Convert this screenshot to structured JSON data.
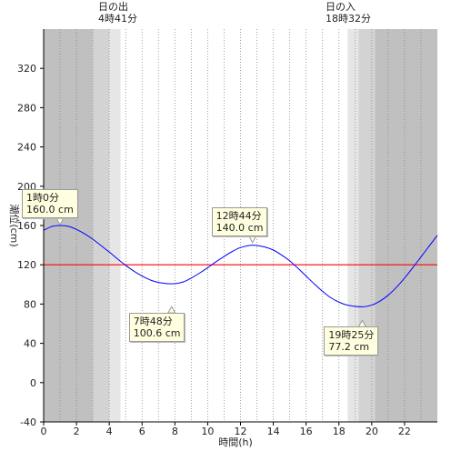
{
  "sunrise": {
    "label": "日の出",
    "time": "4時41分",
    "hour": 4.683
  },
  "sunset": {
    "label": "日の入",
    "time": "18時32分",
    "hour": 18.533
  },
  "colors": {
    "night": "#c0c0c0",
    "twilight_dark": "#d3d3d3",
    "twilight_light": "#e6e6e6",
    "day": "#ffffff",
    "curve": "#0000ff",
    "reference_line": "#ff0000"
  },
  "chart_data": {
    "type": "line",
    "xlabel": "時間(h)",
    "ylabel": "潮位(cm)",
    "xlim": [
      0,
      24
    ],
    "ylim": [
      -40,
      360
    ],
    "x_ticks": [
      0,
      2,
      4,
      6,
      8,
      10,
      12,
      14,
      16,
      18,
      20,
      22
    ],
    "y_ticks": [
      -40,
      0,
      40,
      80,
      120,
      160,
      200,
      240,
      280,
      320
    ],
    "reference_line_y": 120,
    "grid": "vertical dotted every hour",
    "bands": [
      {
        "from": 0,
        "to": 3.0,
        "shade": "night"
      },
      {
        "from": 3.0,
        "to": 4.0,
        "shade": "twilight_dark"
      },
      {
        "from": 4.0,
        "to": 4.683,
        "shade": "twilight_light"
      },
      {
        "from": 4.683,
        "to": 18.533,
        "shade": "day"
      },
      {
        "from": 18.533,
        "to": 19.2,
        "shade": "twilight_light"
      },
      {
        "from": 19.2,
        "to": 20.2,
        "shade": "twilight_dark"
      },
      {
        "from": 20.2,
        "to": 24,
        "shade": "night"
      }
    ],
    "series": [
      {
        "values": [
          [
            0.0,
            155
          ],
          [
            0.5,
            159
          ],
          [
            1.0,
            160
          ],
          [
            1.5,
            159.2
          ],
          [
            2.0,
            156
          ],
          [
            2.5,
            151.5
          ],
          [
            3.0,
            146
          ],
          [
            3.5,
            139.5
          ],
          [
            4.0,
            133
          ],
          [
            4.5,
            126
          ],
          [
            5.0,
            119.5
          ],
          [
            5.5,
            113.5
          ],
          [
            6.0,
            108.5
          ],
          [
            6.5,
            104.5
          ],
          [
            7.0,
            102
          ],
          [
            7.8,
            100.6
          ],
          [
            8.5,
            102.5
          ],
          [
            9.0,
            106.5
          ],
          [
            9.5,
            111.5
          ],
          [
            10.0,
            117
          ],
          [
            10.5,
            123
          ],
          [
            11.0,
            128.5
          ],
          [
            11.5,
            133.5
          ],
          [
            12.0,
            137.5
          ],
          [
            12.73,
            140.0
          ],
          [
            13.5,
            138
          ],
          [
            14.0,
            135
          ],
          [
            14.5,
            130
          ],
          [
            15.0,
            124
          ],
          [
            15.5,
            116.5
          ],
          [
            16.0,
            108.5
          ],
          [
            16.5,
            100.5
          ],
          [
            17.0,
            93
          ],
          [
            17.5,
            86.5
          ],
          [
            18.0,
            82
          ],
          [
            18.5,
            79
          ],
          [
            19.42,
            77.2
          ],
          [
            20.0,
            79
          ],
          [
            20.5,
            83
          ],
          [
            21.0,
            89
          ],
          [
            21.5,
            97
          ],
          [
            22.0,
            106.5
          ],
          [
            22.5,
            117
          ],
          [
            23.0,
            128
          ],
          [
            23.5,
            139
          ],
          [
            24.0,
            150
          ]
        ]
      }
    ],
    "annotations": [
      {
        "time": "1時0分",
        "level": "160.0 cm",
        "x": 1.0,
        "y": 160.0
      },
      {
        "time": "7時48分",
        "level": "100.6 cm",
        "x": 7.8,
        "y": 100.6
      },
      {
        "time": "12時44分",
        "level": "140.0 cm",
        "x": 12.73,
        "y": 140.0
      },
      {
        "time": "19時25分",
        "level": "77.2 cm",
        "x": 19.42,
        "y": 77.2
      }
    ]
  }
}
